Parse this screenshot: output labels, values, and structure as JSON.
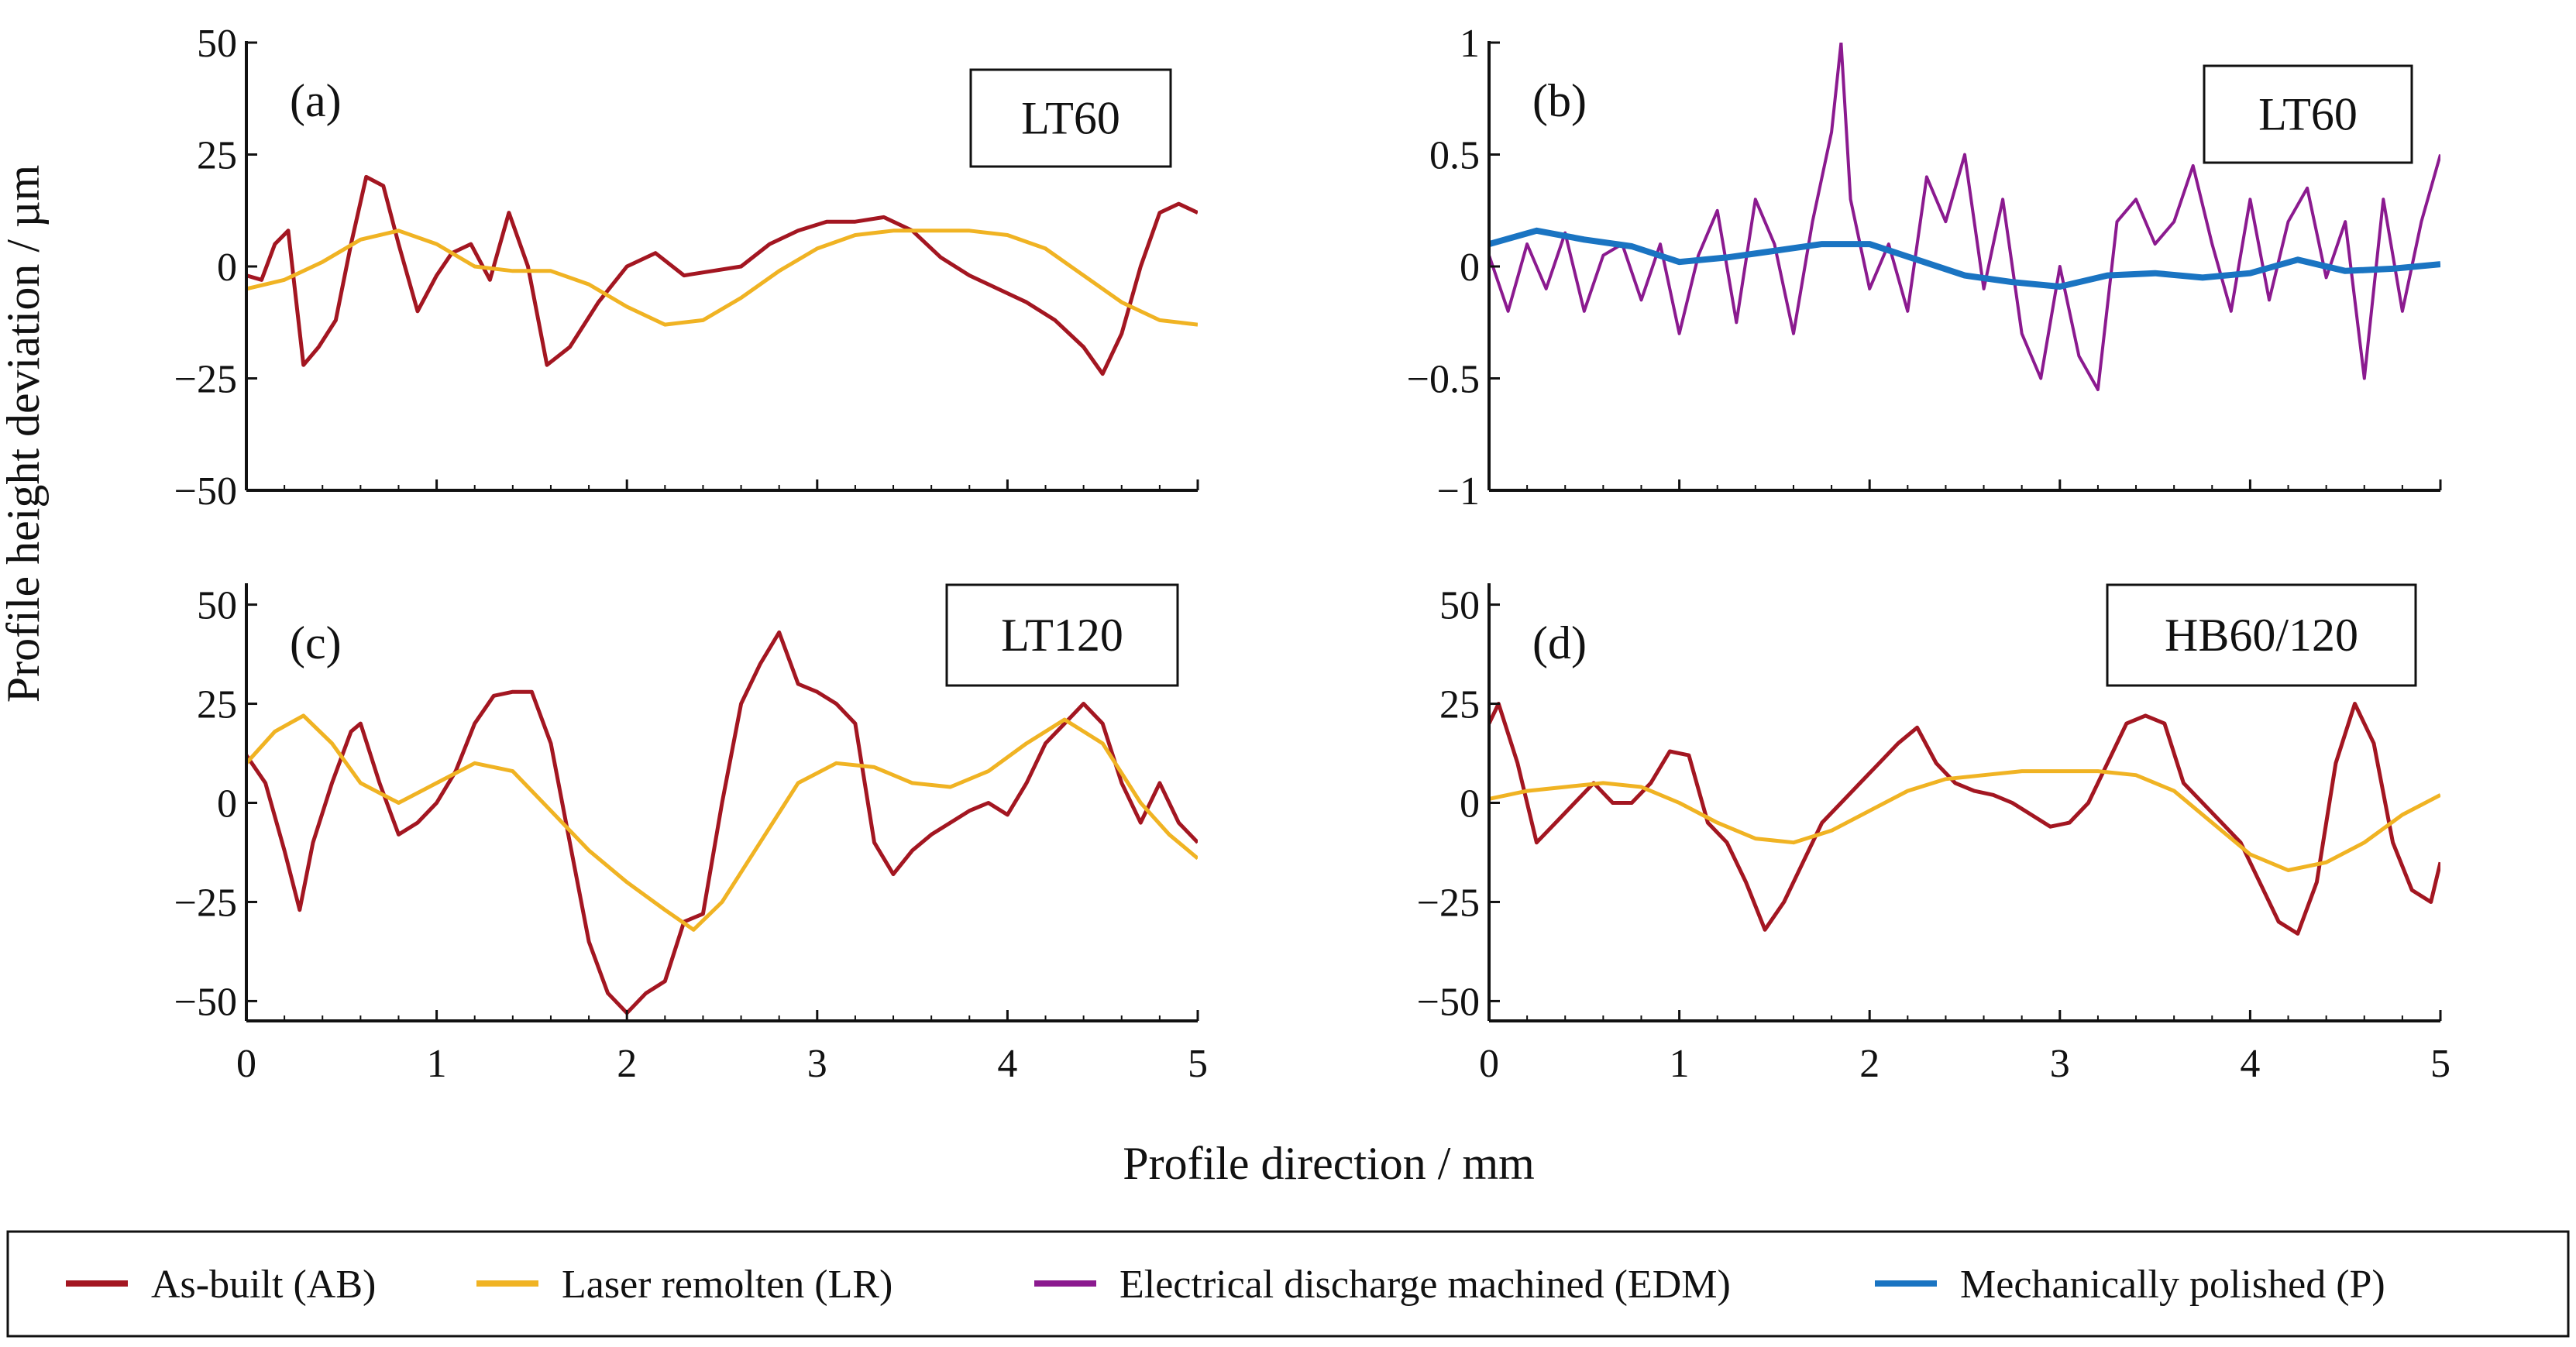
{
  "chart_data": {
    "type": "line",
    "xlabel": "Profile direction / mm",
    "ylabel": "Profile height deviation / µm",
    "legend": {
      "position": "bottom",
      "entries": [
        {
          "key": "AB",
          "label": "As-built (AB)",
          "color": "#a31621"
        },
        {
          "key": "LR",
          "label": "Laser remolten (LR)",
          "color": "#f0b323"
        },
        {
          "key": "EDM",
          "label": "Electrical discharge machined (EDM)",
          "color": "#8b1a8f"
        },
        {
          "key": "P",
          "label": "Mechanically polished (P)",
          "color": "#1a74c2"
        }
      ]
    },
    "panels": [
      {
        "id": "a",
        "panel_label": "(a)",
        "condition": "LT60",
        "xlim": [
          0,
          5
        ],
        "ylim": [
          -50,
          50
        ],
        "xticks": [
          0,
          1,
          2,
          3,
          4,
          5
        ],
        "xtick_labels": [
          "",
          "",
          "",
          "",
          "",
          ""
        ],
        "yticks": [
          -50,
          -25,
          0,
          25,
          50
        ],
        "ytick_labels": [
          "−50",
          "−25",
          "0",
          "25",
          "50"
        ],
        "series": [
          {
            "key": "AB",
            "x": [
              0,
              0.08,
              0.15,
              0.22,
              0.3,
              0.38,
              0.47,
              0.55,
              0.63,
              0.72,
              0.8,
              0.9,
              1.0,
              1.08,
              1.18,
              1.28,
              1.38,
              1.48,
              1.58,
              1.7,
              1.85,
              2.0,
              2.15,
              2.3,
              2.45,
              2.6,
              2.75,
              2.9,
              3.05,
              3.2,
              3.35,
              3.5,
              3.65,
              3.8,
              3.95,
              4.1,
              4.25,
              4.4,
              4.5,
              4.6,
              4.7,
              4.8,
              4.9,
              5.0
            ],
            "values": [
              -2,
              -3,
              5,
              8,
              -22,
              -18,
              -12,
              5,
              20,
              18,
              5,
              -10,
              -2,
              3,
              5,
              -3,
              12,
              0,
              -22,
              -18,
              -8,
              0,
              3,
              -2,
              -1,
              0,
              5,
              8,
              10,
              10,
              11,
              8,
              2,
              -2,
              -5,
              -8,
              -12,
              -18,
              -24,
              -15,
              0,
              12,
              14,
              12
            ]
          },
          {
            "key": "LR",
            "x": [
              0,
              0.2,
              0.4,
              0.6,
              0.8,
              1.0,
              1.2,
              1.4,
              1.6,
              1.8,
              2.0,
              2.2,
              2.4,
              2.6,
              2.8,
              3.0,
              3.2,
              3.4,
              3.6,
              3.8,
              4.0,
              4.2,
              4.4,
              4.6,
              4.8,
              5.0
            ],
            "values": [
              -5,
              -3,
              1,
              6,
              8,
              5,
              0,
              -1,
              -1,
              -4,
              -9,
              -13,
              -12,
              -7,
              -1,
              4,
              7,
              8,
              8,
              8,
              7,
              4,
              -2,
              -8,
              -12,
              -13
            ]
          }
        ]
      },
      {
        "id": "b",
        "panel_label": "(b)",
        "condition": "LT60",
        "xlim": [
          0,
          5
        ],
        "ylim": [
          -1,
          1
        ],
        "xticks": [
          0,
          1,
          2,
          3,
          4,
          5
        ],
        "xtick_labels": [
          "",
          "",
          "",
          "",
          "",
          ""
        ],
        "yticks": [
          -1,
          -0.5,
          0,
          0.5,
          1
        ],
        "ytick_labels": [
          "−1",
          "−0.5",
          "0",
          "0.5",
          "1"
        ],
        "series": [
          {
            "key": "EDM",
            "x": [
              0,
              0.1,
              0.2,
              0.3,
              0.4,
              0.5,
              0.6,
              0.7,
              0.8,
              0.9,
              1.0,
              1.1,
              1.2,
              1.3,
              1.4,
              1.5,
              1.6,
              1.7,
              1.8,
              1.85,
              1.9,
              2.0,
              2.1,
              2.2,
              2.3,
              2.4,
              2.5,
              2.6,
              2.7,
              2.8,
              2.9,
              3.0,
              3.1,
              3.2,
              3.3,
              3.4,
              3.5,
              3.6,
              3.7,
              3.8,
              3.9,
              4.0,
              4.1,
              4.2,
              4.3,
              4.4,
              4.5,
              4.6,
              4.7,
              4.8,
              4.9,
              5.0
            ],
            "values": [
              0.05,
              -0.2,
              0.1,
              -0.1,
              0.15,
              -0.2,
              0.05,
              0.1,
              -0.15,
              0.1,
              -0.3,
              0.05,
              0.25,
              -0.25,
              0.3,
              0.1,
              -0.3,
              0.2,
              0.6,
              1.0,
              0.3,
              -0.1,
              0.1,
              -0.2,
              0.4,
              0.2,
              0.5,
              -0.1,
              0.3,
              -0.3,
              -0.5,
              0.0,
              -0.4,
              -0.55,
              0.2,
              0.3,
              0.1,
              0.2,
              0.45,
              0.1,
              -0.2,
              0.3,
              -0.15,
              0.2,
              0.35,
              -0.05,
              0.2,
              -0.5,
              0.3,
              -0.2,
              0.2,
              0.5
            ]
          },
          {
            "key": "P",
            "x": [
              0,
              0.25,
              0.5,
              0.75,
              1.0,
              1.25,
              1.5,
              1.75,
              2.0,
              2.25,
              2.5,
              2.75,
              3.0,
              3.25,
              3.5,
              3.75,
              4.0,
              4.25,
              4.5,
              4.75,
              5.0
            ],
            "values": [
              0.1,
              0.16,
              0.12,
              0.09,
              0.02,
              0.04,
              0.07,
              0.1,
              0.1,
              0.03,
              -0.04,
              -0.07,
              -0.09,
              -0.04,
              -0.03,
              -0.05,
              -0.03,
              0.03,
              -0.02,
              -0.01,
              0.01
            ]
          }
        ]
      },
      {
        "id": "c",
        "panel_label": "(c)",
        "condition": "LT120",
        "xlim": [
          0,
          5
        ],
        "ylim": [
          -55,
          55
        ],
        "xticks": [
          0,
          1,
          2,
          3,
          4,
          5
        ],
        "xtick_labels": [
          "0",
          "1",
          "2",
          "3",
          "4",
          "5"
        ],
        "yticks": [
          -50,
          -25,
          0,
          25,
          50
        ],
        "ytick_labels": [
          "−50",
          "−25",
          "0",
          "25",
          "50"
        ],
        "series": [
          {
            "key": "AB",
            "x": [
              0,
              0.1,
              0.2,
              0.28,
              0.35,
              0.45,
              0.55,
              0.6,
              0.7,
              0.8,
              0.9,
              1.0,
              1.1,
              1.2,
              1.3,
              1.4,
              1.5,
              1.6,
              1.7,
              1.8,
              1.9,
              2.0,
              2.1,
              2.2,
              2.3,
              2.4,
              2.5,
              2.6,
              2.7,
              2.8,
              2.9,
              3.0,
              3.1,
              3.2,
              3.3,
              3.4,
              3.5,
              3.6,
              3.7,
              3.8,
              3.9,
              4.0,
              4.1,
              4.2,
              4.3,
              4.4,
              4.5,
              4.6,
              4.7,
              4.8,
              4.9,
              5.0
            ],
            "values": [
              12,
              5,
              -12,
              -27,
              -10,
              5,
              18,
              20,
              5,
              -8,
              -5,
              0,
              8,
              20,
              27,
              28,
              28,
              15,
              -10,
              -35,
              -48,
              -53,
              -48,
              -45,
              -30,
              -28,
              0,
              25,
              35,
              43,
              30,
              28,
              25,
              20,
              -10,
              -18,
              -12,
              -8,
              -5,
              -2,
              0,
              -3,
              5,
              15,
              20,
              25,
              20,
              5,
              -5,
              5,
              -5,
              -10
            ]
          },
          {
            "key": "LR",
            "x": [
              0,
              0.15,
              0.3,
              0.45,
              0.6,
              0.8,
              1.0,
              1.2,
              1.4,
              1.6,
              1.8,
              2.0,
              2.2,
              2.35,
              2.5,
              2.7,
              2.9,
              3.1,
              3.3,
              3.5,
              3.7,
              3.9,
              4.1,
              4.3,
              4.5,
              4.7,
              4.85,
              5.0
            ],
            "values": [
              10,
              18,
              22,
              15,
              5,
              0,
              5,
              10,
              8,
              -2,
              -12,
              -20,
              -27,
              -32,
              -25,
              -10,
              5,
              10,
              9,
              5,
              4,
              8,
              15,
              21,
              15,
              0,
              -8,
              -14
            ]
          }
        ]
      },
      {
        "id": "d",
        "panel_label": "(d)",
        "condition": "HB60/120",
        "xlim": [
          0,
          5
        ],
        "ylim": [
          -55,
          55
        ],
        "xticks": [
          0,
          1,
          2,
          3,
          4,
          5
        ],
        "xtick_labels": [
          "0",
          "1",
          "2",
          "3",
          "4",
          "5"
        ],
        "yticks": [
          -50,
          -25,
          0,
          25,
          50
        ],
        "ytick_labels": [
          "−50",
          "−25",
          "0",
          "25",
          "50"
        ],
        "series": [
          {
            "key": "AB",
            "x": [
              0,
              0.05,
              0.15,
              0.25,
              0.35,
              0.45,
              0.55,
              0.65,
              0.75,
              0.85,
              0.95,
              1.05,
              1.15,
              1.25,
              1.35,
              1.45,
              1.55,
              1.65,
              1.75,
              1.85,
              1.95,
              2.05,
              2.15,
              2.25,
              2.35,
              2.45,
              2.55,
              2.65,
              2.75,
              2.85,
              2.95,
              3.05,
              3.15,
              3.25,
              3.35,
              3.45,
              3.55,
              3.65,
              3.75,
              3.85,
              3.95,
              4.05,
              4.15,
              4.25,
              4.35,
              4.45,
              4.55,
              4.65,
              4.75,
              4.85,
              4.95,
              5.0
            ],
            "values": [
              20,
              25,
              10,
              -10,
              -5,
              0,
              5,
              0,
              0,
              5,
              13,
              12,
              -5,
              -10,
              -20,
              -32,
              -25,
              -15,
              -5,
              0,
              5,
              10,
              15,
              19,
              10,
              5,
              3,
              2,
              0,
              -3,
              -6,
              -5,
              0,
              10,
              20,
              22,
              20,
              5,
              0,
              -5,
              -10,
              -20,
              -30,
              -33,
              -20,
              10,
              25,
              15,
              -10,
              -22,
              -25,
              -15
            ]
          },
          {
            "key": "LR",
            "x": [
              0,
              0.2,
              0.4,
              0.6,
              0.8,
              1.0,
              1.2,
              1.4,
              1.6,
              1.8,
              2.0,
              2.2,
              2.4,
              2.6,
              2.8,
              3.0,
              3.2,
              3.4,
              3.6,
              3.8,
              4.0,
              4.2,
              4.4,
              4.6,
              4.8,
              5.0
            ],
            "values": [
              1,
              3,
              4,
              5,
              4,
              0,
              -5,
              -9,
              -10,
              -7,
              -2,
              3,
              6,
              7,
              8,
              8,
              8,
              7,
              3,
              -5,
              -13,
              -17,
              -15,
              -10,
              -3,
              2
            ]
          }
        ]
      }
    ]
  }
}
